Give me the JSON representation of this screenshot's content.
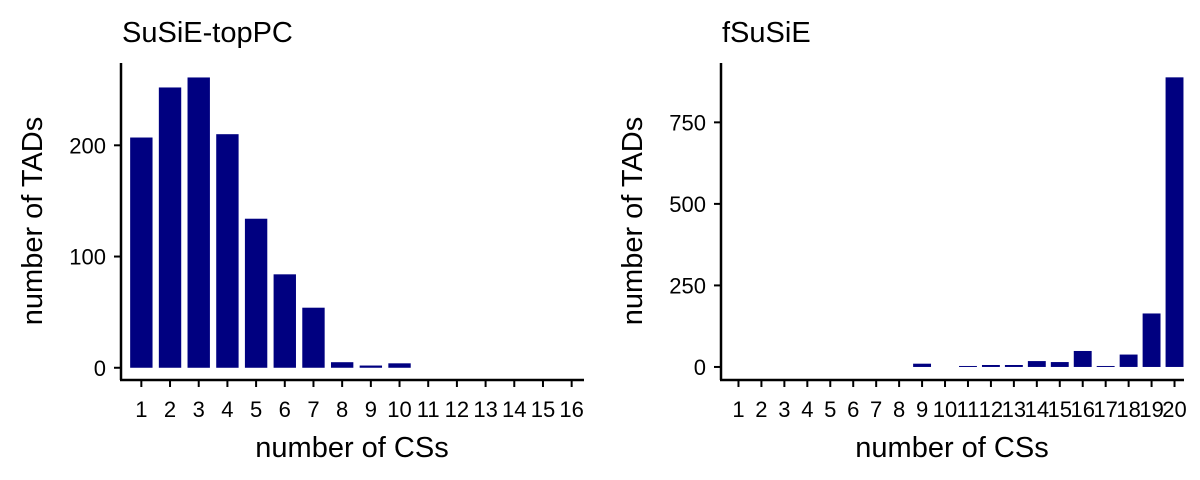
{
  "chart_data": [
    {
      "type": "bar",
      "title": "SuSiE-topPC",
      "xlabel": "number of CSs",
      "ylabel": "number of TADs",
      "categories": [
        "1",
        "2",
        "3",
        "4",
        "5",
        "6",
        "7",
        "8",
        "9",
        "10",
        "11",
        "12",
        "13",
        "14",
        "15",
        "16"
      ],
      "values": [
        207,
        252,
        261,
        210,
        134,
        84,
        54,
        5,
        2,
        4,
        0,
        0,
        0,
        0,
        0,
        0
      ],
      "yticks": [
        0,
        100,
        200
      ],
      "ylim": [
        -11,
        274
      ],
      "bar_color": "#000080",
      "grid": false,
      "legend": "none"
    },
    {
      "type": "bar",
      "title": "fSuSiE",
      "xlabel": "number of CSs",
      "ylabel": "number of TADs",
      "categories": [
        "1",
        "2",
        "3",
        "4",
        "5",
        "6",
        "7",
        "8",
        "9",
        "10",
        "11",
        "12",
        "13",
        "14",
        "15",
        "16",
        "17",
        "18",
        "19",
        "20"
      ],
      "values": [
        0,
        0,
        0,
        0,
        0,
        0,
        0,
        0,
        10,
        0,
        3,
        6,
        6,
        18,
        15,
        49,
        3,
        38,
        164,
        888
      ],
      "yticks": [
        0,
        250,
        500,
        750
      ],
      "ylim": [
        -40,
        932
      ],
      "bar_color": "#000080",
      "grid": false,
      "legend": "none"
    }
  ]
}
